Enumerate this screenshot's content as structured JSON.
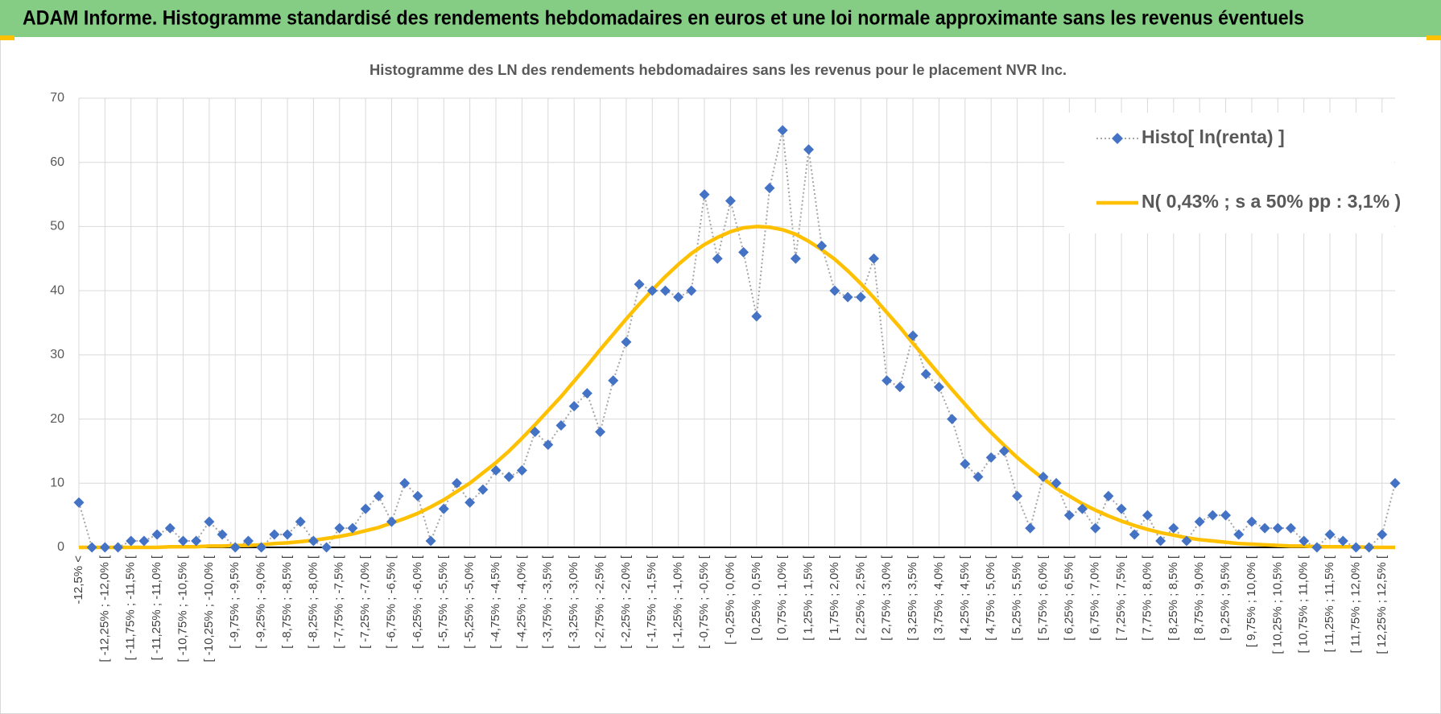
{
  "header": {
    "title": "ADAM Informe. Histogramme standardisé des rendements hebdomadaires en euros et une loi normale approximante sans les revenus éventuels"
  },
  "chart_data": {
    "type": "line",
    "title": "Histogramme des LN des rendements hebdomadaires sans les revenus pour le placement NVR Inc.",
    "categories": [
      "-12,5% <",
      null,
      "[ -12,25% ; -12,0% [",
      null,
      "[ -11,75% ; -11,5% [",
      null,
      "[ -11,25% ; -11,0% [",
      null,
      "[ -10,75% ; -10,5% [",
      null,
      "[ -10,25% ; -10,0% [",
      null,
      "[ -9,75% ; -9,5% [",
      null,
      "[ -9,25% ; -9,0% [",
      null,
      "[ -8,75% ; -8,5% [",
      null,
      "[ -8,25% ; -8,0% [",
      null,
      "[ -7,75% ; -7,5% [",
      null,
      "[ -7,25% ; -7,0% [",
      null,
      "[ -6,75% ; -6,5% [",
      null,
      "[ -6,25% ; -6,0% [",
      null,
      "[ -5,75% ; -5,5% [",
      null,
      "[ -5,25% ; -5,0% [",
      null,
      "[ -4,75% ; -4,5% [",
      null,
      "[ -4,25% ; -4,0% [",
      null,
      "[ -3,75% ; -3,5% [",
      null,
      "[ -3,25% ; -3,0% [",
      null,
      "[ -2,75% ; -2,5% [",
      null,
      "[ -2,25% ; -2,0% [",
      null,
      "[ -1,75% ; -1,5% [",
      null,
      "[ -1,25% ; -1,0% [",
      null,
      "[ -0,75% ; -0,5% [",
      null,
      "[ -0,25% ; 0,0% [",
      null,
      "[ 0,25% ; 0,5% [",
      null,
      "[ 0,75% ; 1,0% [",
      null,
      "[ 1,25% ; 1,5% [",
      null,
      "[ 1,75% ; 2,0% [",
      null,
      "[ 2,25% ; 2,5% [",
      null,
      "[ 2,75% ; 3,0% [",
      null,
      "[ 3,25% ; 3,5% [",
      null,
      "[ 3,75% ; 4,0% [",
      null,
      "[ 4,25% ; 4,5% [",
      null,
      "[ 4,75% ; 5,0% [",
      null,
      "[ 5,25% ; 5,5% [",
      null,
      "[ 5,75% ; 6,0% [",
      null,
      "[ 6,25% ; 6,5% [",
      null,
      "[ 6,75% ; 7,0% [",
      null,
      "[ 7,25% ; 7,5% [",
      null,
      "[ 7,75% ; 8,0% [",
      null,
      "[ 8,25% ; 8,5% [",
      null,
      "[ 8,75% ; 9,0% [",
      null,
      "[ 9,25% ; 9,5% [",
      null,
      "[ 9,75% ; 10,0% [",
      null,
      "[ 10,25% ; 10,5% [",
      null,
      "[ 10,75% ; 11,0% [",
      null,
      "[ 11,25% ; 11,5% [",
      null,
      "[ 11,75% ; 12,0% [",
      null,
      "[ 12,25% ; 12,5% [",
      null
    ],
    "series": [
      {
        "name": "Histo[ ln(renta) ]",
        "color": "#4472c4",
        "line_color": "#a6a6a6",
        "marker": "diamond",
        "values": [
          7,
          0,
          0,
          0,
          1,
          1,
          2,
          3,
          1,
          1,
          4,
          2,
          0,
          1,
          0,
          2,
          2,
          4,
          1,
          0,
          3,
          3,
          6,
          8,
          4,
          10,
          8,
          1,
          6,
          10,
          7,
          9,
          12,
          11,
          12,
          18,
          16,
          19,
          22,
          24,
          18,
          26,
          32,
          41,
          40,
          40,
          39,
          40,
          55,
          45,
          54,
          46,
          36,
          56,
          65,
          45,
          62,
          47,
          40,
          39,
          39,
          45,
          26,
          25,
          33,
          27,
          25,
          20,
          13,
          11,
          14,
          15,
          8,
          3,
          11,
          10,
          5,
          6,
          3,
          8,
          6,
          2,
          5,
          1,
          3,
          1,
          4,
          5,
          5,
          2,
          4,
          3,
          3,
          3,
          1,
          0,
          2,
          1,
          0,
          0,
          2,
          10
        ]
      },
      {
        "name": "N( 0,43% ; s a 50% pp : 3,1% )",
        "color": "#ffc000",
        "marker": "none",
        "values": [
          0.0,
          0.0,
          0.0,
          0.0,
          0.0,
          0.0,
          0.0,
          0.1,
          0.1,
          0.1,
          0.2,
          0.2,
          0.3,
          0.3,
          0.4,
          0.6,
          0.7,
          0.9,
          1.1,
          1.4,
          1.7,
          2.1,
          2.6,
          3.1,
          3.8,
          4.5,
          5.3,
          6.3,
          7.4,
          8.7,
          10.0,
          11.6,
          13.2,
          15.0,
          17.0,
          19.1,
          21.3,
          23.5,
          25.9,
          28.3,
          30.8,
          33.2,
          35.6,
          37.9,
          40.1,
          42.2,
          44.1,
          45.8,
          47.2,
          48.3,
          49.2,
          49.8,
          50.0,
          49.9,
          49.5,
          48.8,
          47.7,
          46.4,
          44.9,
          43.1,
          41.1,
          38.9,
          36.6,
          34.3,
          31.8,
          29.4,
          27.0,
          24.6,
          22.3,
          20.0,
          17.9,
          15.9,
          14.0,
          12.3,
          10.7,
          9.2,
          8.0,
          6.8,
          5.8,
          4.9,
          4.1,
          3.4,
          2.8,
          2.3,
          1.9,
          1.5,
          1.2,
          1.0,
          0.8,
          0.6,
          0.5,
          0.4,
          0.3,
          0.2,
          0.2,
          0.1,
          0.1,
          0.1,
          0.1,
          0.0,
          0.0,
          0.0
        ]
      }
    ],
    "ylim": [
      0,
      70
    ],
    "yticks": [
      0,
      10,
      20,
      30,
      40,
      50,
      60,
      70
    ],
    "grid": true,
    "legend": "upper right"
  }
}
